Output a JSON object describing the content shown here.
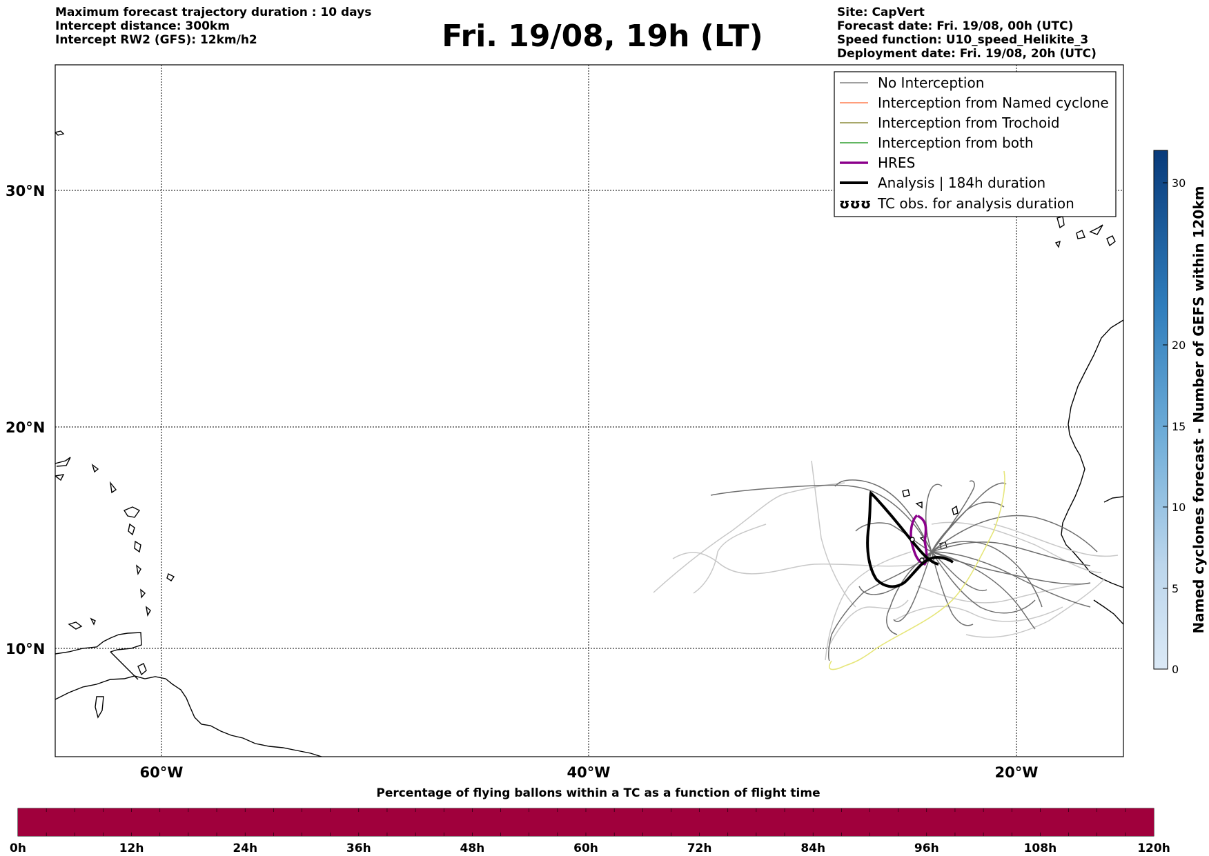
{
  "header_left": [
    "Maximum forecast trajectory duration : 10 days",
    "Intercept distance: 300km",
    "Intercept RW2 (GFS):  12km/h2"
  ],
  "header_right": [
    "Site: CapVert",
    "Forecast date: Fri. 19/08, 00h (UTC)",
    "Speed function: U10_speed_Helikite_3",
    "Deployment date: Fri. 19/08, 20h (UTC)"
  ],
  "title": "Fri. 19/08, 19h (LT)",
  "map": {
    "lat_labels": [
      "30°N",
      "20°N",
      "10°N"
    ],
    "lon_labels": [
      "60°W",
      "40°W",
      "20°W"
    ],
    "grid": true,
    "lon_range": [
      -65,
      -15
    ],
    "lat_range": [
      5.3,
      34.5
    ]
  },
  "legend": {
    "placement": "top-right",
    "items": [
      {
        "label": "No Interception",
        "color": "#808080"
      },
      {
        "label": "Interception from Named cyclone",
        "color": "#ff7f50"
      },
      {
        "label": "Interception from Trochoid",
        "color": "#8b8b3a"
      },
      {
        "label": "Interception from both",
        "color": "#2e9e2e"
      },
      {
        "label": "HRES",
        "color": "#8b008b"
      },
      {
        "label": "Analysis | 184h duration",
        "color": "#000000"
      },
      {
        "label": "TC obs. for analysis duration",
        "symbol": "ʊʊʊ"
      }
    ]
  },
  "colorbar_right": {
    "label": "Named cyclones forecast - Number of GEFS within 120km",
    "ticks": [
      "30",
      "20",
      "15",
      "10",
      "5",
      "0"
    ],
    "range": [
      0,
      32
    ]
  },
  "bottom_bar": {
    "title": "Percentage of flying ballons within a TC as a function of flight time",
    "ticks": [
      "0h",
      "12h",
      "24h",
      "36h",
      "48h",
      "60h",
      "72h",
      "84h",
      "96h",
      "108h",
      "120h"
    ],
    "fill_color": "#a0003c",
    "fill_fraction": 1.0
  }
}
